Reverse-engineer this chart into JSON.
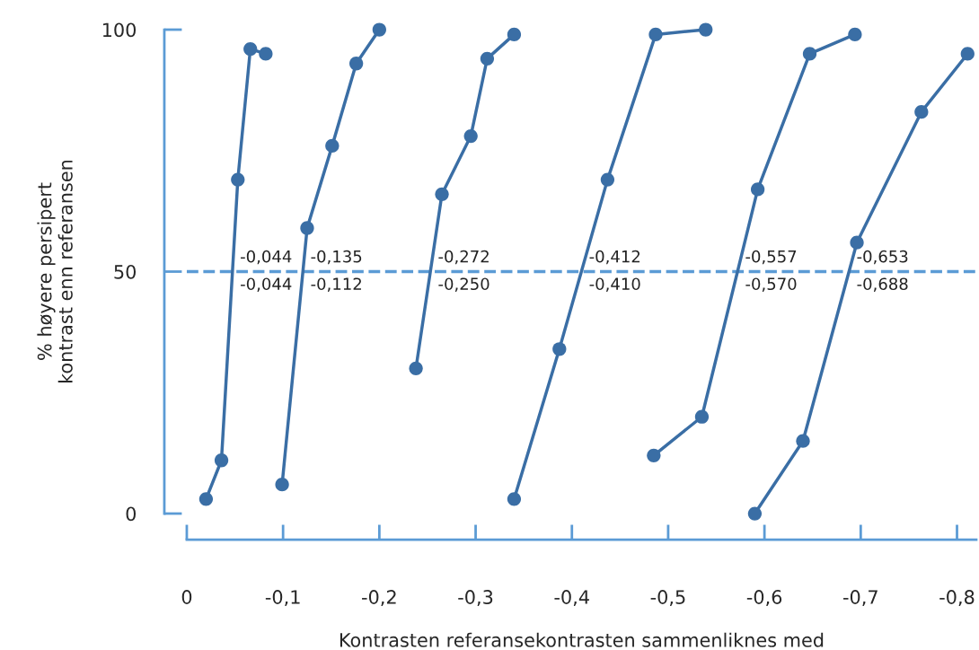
{
  "chart_data": {
    "type": "line",
    "xlabel": "Kontrasten referansekontrasten sammenliknes med",
    "ylabel": "% høyere persipert\nkontrast enn referansen",
    "series": [
      {
        "color": "#3a6ea5",
        "x": [
          -0.02,
          -0.036,
          -0.053,
          -0.066,
          -0.082
        ],
        "values": [
          3,
          11,
          69,
          96,
          95
        ]
      },
      {
        "color": "#3a6ea5",
        "x": [
          -0.099,
          -0.125,
          -0.151,
          -0.176,
          -0.2
        ],
        "values": [
          6,
          59,
          76,
          93,
          100
        ]
      },
      {
        "color": "#3a6ea5",
        "x": [
          -0.238,
          -0.265,
          -0.295,
          -0.312,
          -0.34
        ],
        "values": [
          30,
          66,
          78,
          94,
          99
        ]
      },
      {
        "color": "#3a6ea5",
        "x": [
          -0.34,
          -0.387,
          -0.437,
          -0.487,
          -0.539
        ],
        "values": [
          3,
          34,
          69,
          99,
          100
        ]
      },
      {
        "color": "#3a6ea5",
        "x": [
          -0.485,
          -0.535,
          -0.593,
          -0.647,
          -0.694
        ],
        "values": [
          12,
          20,
          67,
          95,
          99
        ]
      },
      {
        "color": "#3a6ea5",
        "x": [
          -0.59,
          -0.64,
          -0.696,
          -0.763,
          -0.811
        ],
        "values": [
          0,
          15,
          56,
          83,
          95
        ]
      }
    ],
    "marker": "circle",
    "line_style": "solid",
    "grid": false,
    "legend": false,
    "xlim": [
      0,
      -0.82
    ],
    "ylim": [
      0,
      100
    ],
    "xticks": [
      0,
      {
        "value": -0.1,
        "label": "-0,1"
      },
      {
        "value": -0.2,
        "label": "-0,2"
      },
      {
        "value": -0.3,
        "label": "-0,3"
      },
      {
        "value": -0.4,
        "label": "-0,4"
      },
      {
        "value": -0.5,
        "label": "-0,5"
      },
      {
        "value": -0.6,
        "label": "-0,6"
      },
      {
        "value": -0.7,
        "label": "-0,7"
      },
      {
        "value": -0.8,
        "label": "-0,8"
      }
    ],
    "yticks": [
      0,
      50,
      100
    ],
    "ref_lines": [
      {
        "axis": "y",
        "value": 50,
        "color": "#5b9bd5",
        "line_style": "dashed"
      }
    ],
    "annotations": [
      "-0,044",
      "-0,044",
      "-0,135",
      "-0,112",
      "-0,272",
      "-0,250",
      "-0,412",
      "-0,410",
      "-0,557",
      "-0,570",
      "-0,653",
      "-0,688"
    ]
  }
}
